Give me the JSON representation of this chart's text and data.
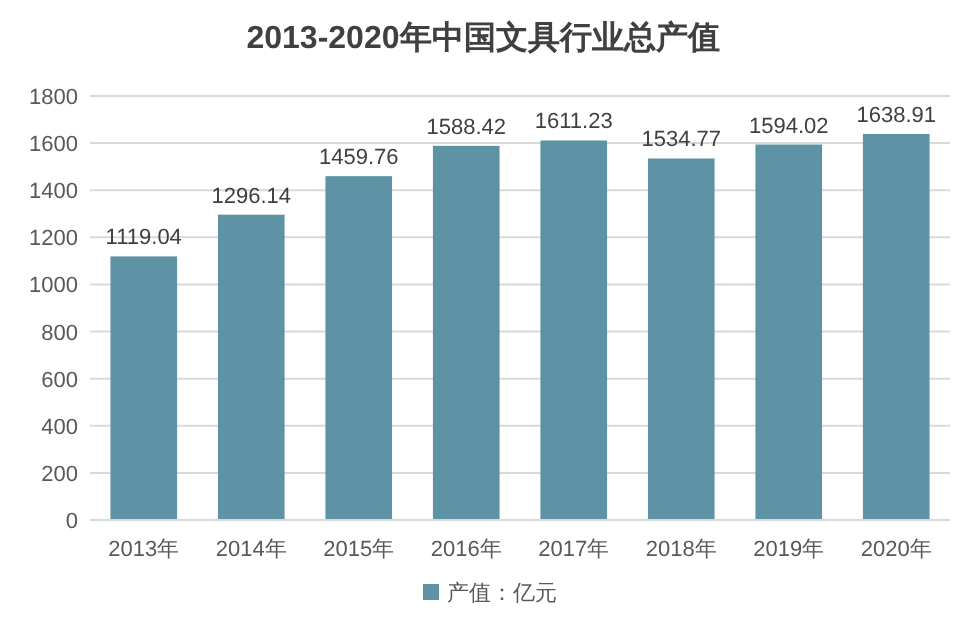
{
  "chart_data": {
    "type": "bar",
    "title": "2013-2020年中国文具行业总产值",
    "categories": [
      "2013年",
      "2014年",
      "2015年",
      "2016年",
      "2017年",
      "2018年",
      "2019年",
      "2020年"
    ],
    "series": [
      {
        "name": "产值：亿元",
        "color": "#5e93a6",
        "values": [
          1119.04,
          1296.14,
          1459.76,
          1588.42,
          1611.23,
          1534.77,
          1594.02,
          1638.91
        ]
      }
    ],
    "ylim": [
      0,
      1800
    ],
    "yticks": [
      0,
      200,
      400,
      600,
      800,
      1000,
      1200,
      1400,
      1600,
      1800
    ],
    "grid": "y",
    "legend": "bottom",
    "data_labels": true
  }
}
